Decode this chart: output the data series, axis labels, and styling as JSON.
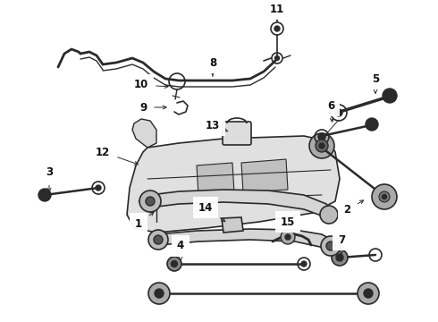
{
  "bg_color": "#ffffff",
  "line_color": "#2a2a2a",
  "figsize": [
    4.9,
    3.6
  ],
  "dpi": 100,
  "xlim": [
    0,
    490
  ],
  "ylim": [
    0,
    360
  ]
}
